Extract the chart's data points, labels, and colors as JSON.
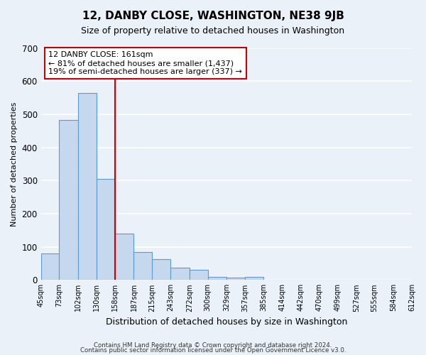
{
  "title": "12, DANBY CLOSE, WASHINGTON, NE38 9JB",
  "subtitle": "Size of property relative to detached houses in Washington",
  "xlabel": "Distribution of detached houses by size in Washington",
  "ylabel": "Number of detached properties",
  "bar_color": "#c5d8ed",
  "bar_edge_color": "#5b9bd5",
  "bg_color": "#eaf1f8",
  "grid_color": "#ffffff",
  "vline_x": 158,
  "vline_color": "#cc0000",
  "bin_edges": [
    45,
    73,
    102,
    130,
    158,
    187,
    215,
    243,
    272,
    300,
    329,
    357,
    385,
    414,
    442,
    470,
    499,
    527,
    555,
    584,
    612
  ],
  "bin_labels": [
    "45sqm",
    "73sqm",
    "102sqm",
    "130sqm",
    "158sqm",
    "187sqm",
    "215sqm",
    "243sqm",
    "272sqm",
    "300sqm",
    "329sqm",
    "357sqm",
    "385sqm",
    "414sqm",
    "442sqm",
    "470sqm",
    "499sqm",
    "527sqm",
    "555sqm",
    "584sqm",
    "612sqm"
  ],
  "counts": [
    80,
    483,
    565,
    305,
    139,
    84,
    63,
    37,
    31,
    10,
    8,
    10,
    0,
    0,
    0,
    0,
    0,
    0,
    0,
    0
  ],
  "annotation_title": "12 DANBY CLOSE: 161sqm",
  "annotation_line1": "← 81% of detached houses are smaller (1,437)",
  "annotation_line2": "19% of semi-detached houses are larger (337) →",
  "annotation_box_color": "#ffffff",
  "annotation_box_edge": "#cc0000",
  "footer1": "Contains HM Land Registry data © Crown copyright and database right 2024.",
  "footer2": "Contains public sector information licensed under the Open Government Licence v3.0.",
  "ylim": [
    0,
    700
  ],
  "yticks": [
    0,
    100,
    200,
    300,
    400,
    500,
    600,
    700
  ]
}
